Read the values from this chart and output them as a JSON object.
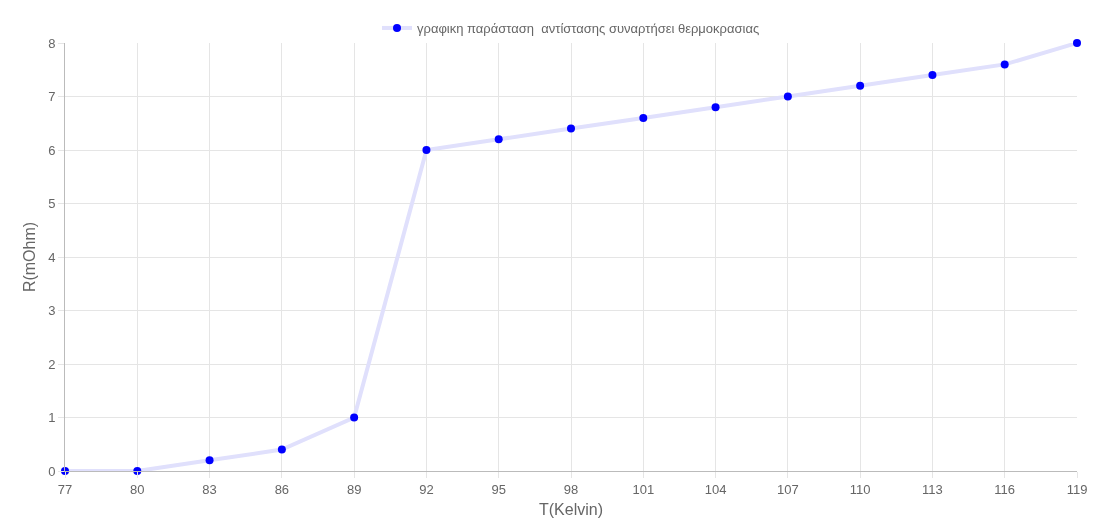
{
  "chart_data": {
    "type": "line",
    "xlabel": "T(Kelvin)",
    "ylabel": "R(mOhm)",
    "categories": [
      "77",
      "80",
      "83",
      "86",
      "89",
      "92",
      "95",
      "98",
      "101",
      "104",
      "107",
      "110",
      "113",
      "116",
      "119"
    ],
    "series": [
      {
        "name": "γραφικη παράσταση  αντίστασης συναρτήσει θερμοκρασιας",
        "color": "#e0e0fc",
        "values": [
          0,
          0,
          0.2,
          0.4,
          1,
          6,
          6.2,
          6.4,
          6.6,
          6.8,
          7,
          7.2,
          7.4,
          7.6,
          8
        ]
      }
    ],
    "ylim": [
      0,
      8
    ],
    "yticks": [
      0,
      1,
      2,
      3,
      4,
      5,
      6,
      7,
      8
    ],
    "grid": true,
    "legend": "top",
    "marker": "circle",
    "line_style": "solid"
  }
}
